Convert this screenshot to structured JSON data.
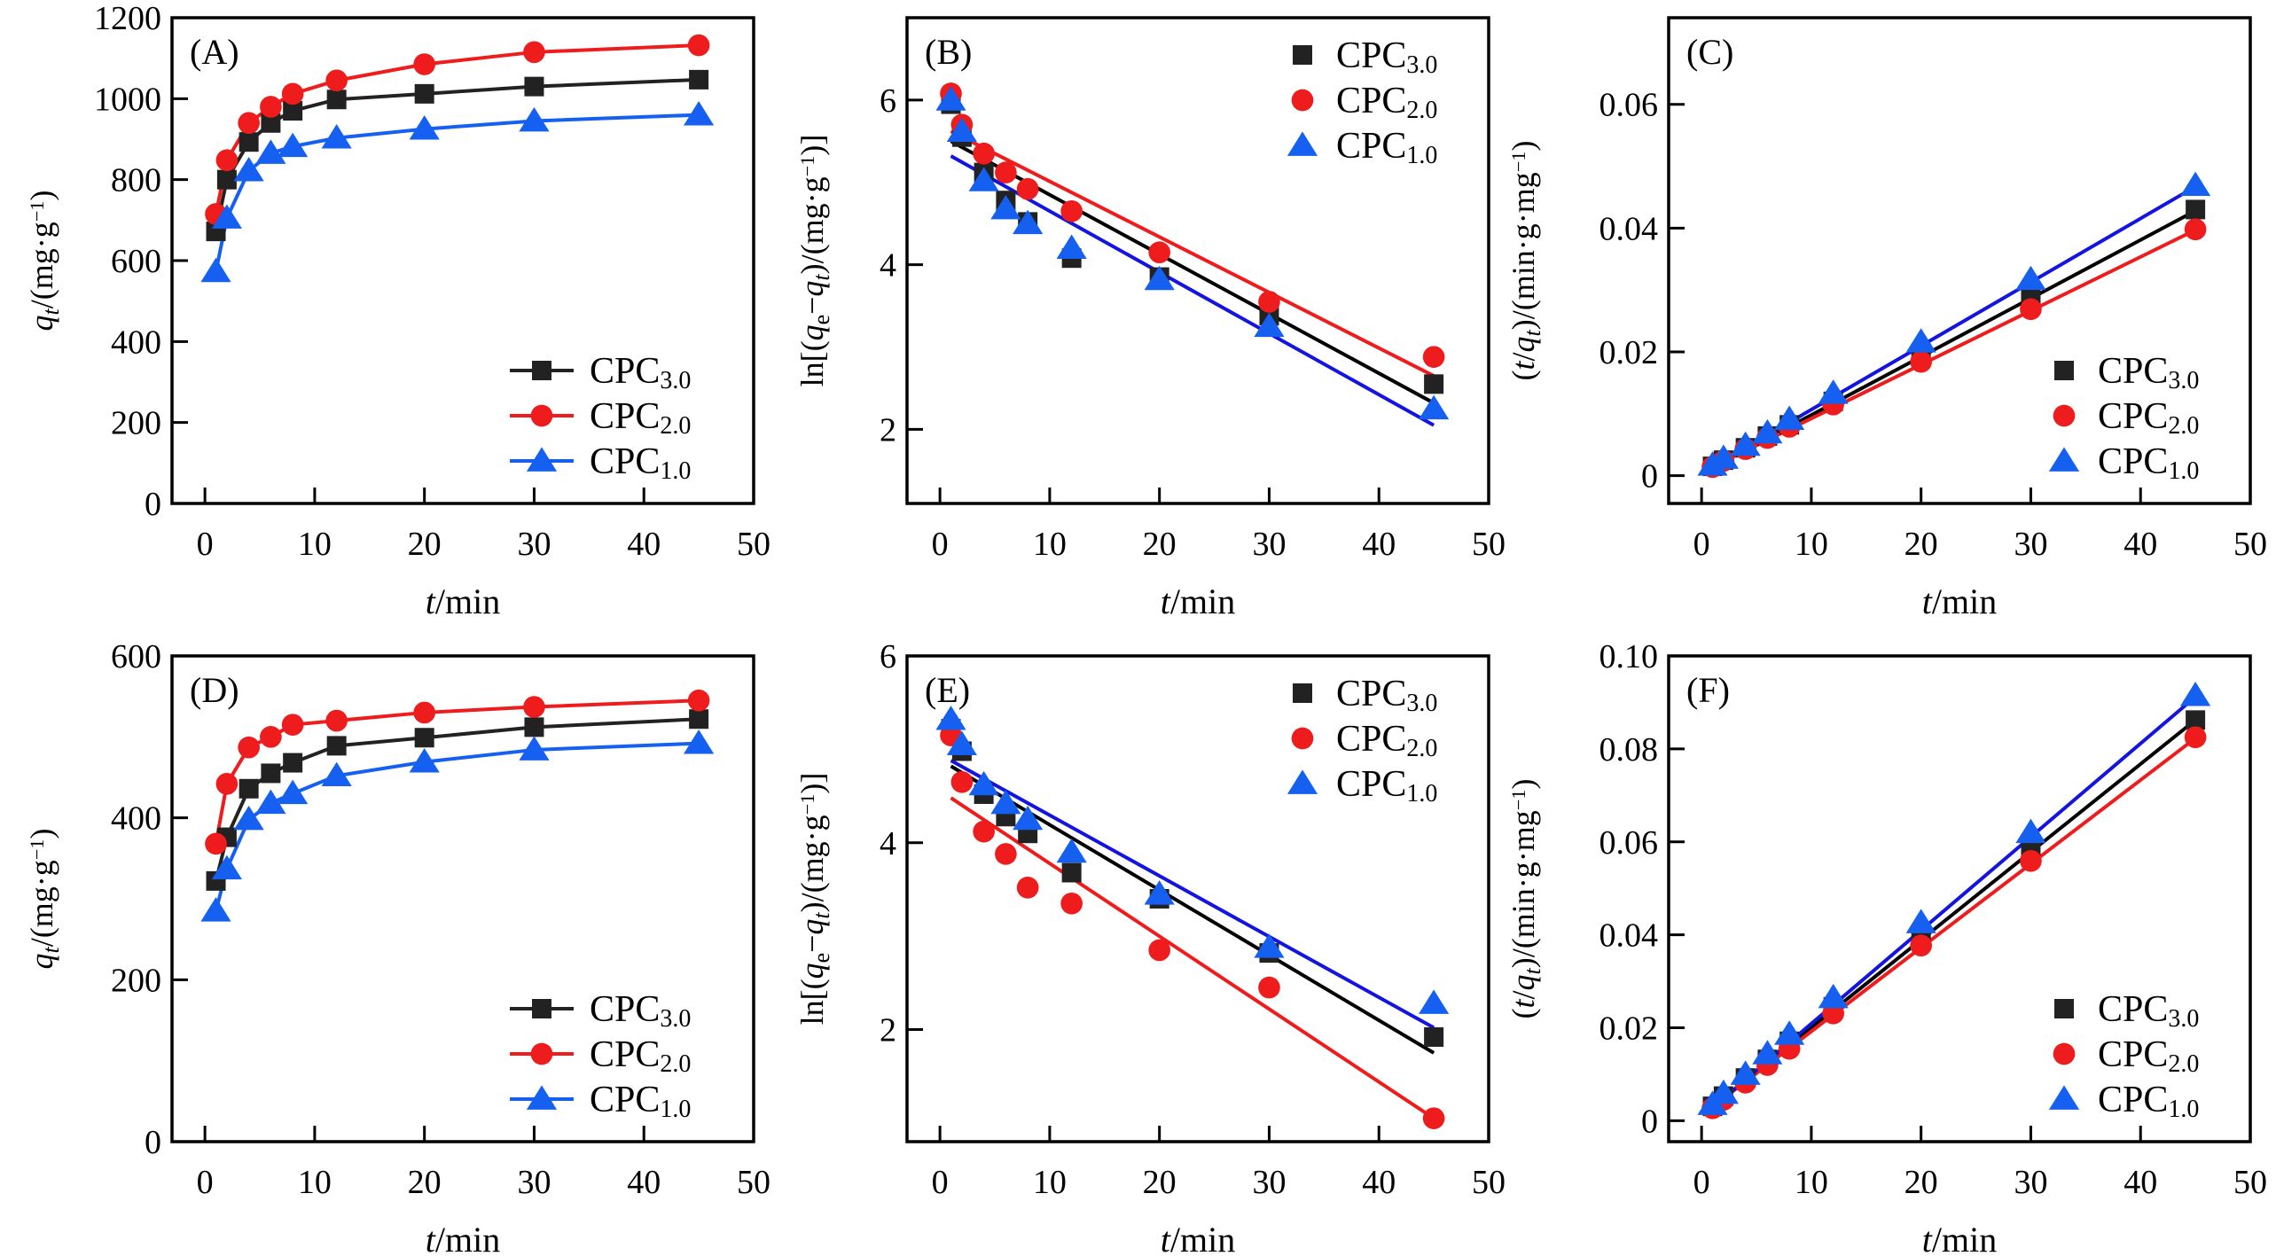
{
  "chart_data": [
    {
      "id": "A",
      "type": "line",
      "panel_label": "(A)",
      "xlabel_italic": "t",
      "xlabel_rest": "/min",
      "ylabel_parts": [
        {
          "t": "q",
          "italic": true
        },
        {
          "t": "t",
          "italic": true,
          "sub": true
        },
        {
          "t": "/(mg·g",
          "italic": false
        },
        {
          "t": "−1",
          "sup": true
        },
        {
          "t": ")",
          "italic": false
        }
      ],
      "xlim": [
        -3,
        50
      ],
      "ylim": [
        0,
        1200
      ],
      "xticks": [
        0,
        10,
        20,
        30,
        40,
        50
      ],
      "yticks": [
        0,
        200,
        400,
        600,
        800,
        1000,
        1200
      ],
      "ytick_labels": [
        "0",
        "200",
        "400",
        "600",
        "800",
        "1000",
        "1200"
      ],
      "legend": "bottom-right",
      "legend_style": "line-marker",
      "x": [
        1,
        2,
        4,
        6,
        8,
        12,
        20,
        30,
        45
      ],
      "series": [
        {
          "name": "CPC",
          "sub": "3.0",
          "color": "#222222",
          "marker": "square",
          "values": [
            672,
            800,
            893,
            940,
            970,
            998,
            1012,
            1030,
            1047
          ]
        },
        {
          "name": "CPC",
          "sub": "2.0",
          "color": "#ee1c1c",
          "marker": "circle",
          "values": [
            715,
            848,
            940,
            980,
            1012,
            1045,
            1085,
            1115,
            1132
          ]
        },
        {
          "name": "CPC",
          "sub": "1.0",
          "color": "#1560f0",
          "marker": "triangle",
          "values": [
            573,
            705,
            822,
            865,
            882,
            903,
            925,
            945,
            960
          ]
        }
      ]
    },
    {
      "id": "B",
      "type": "scatter",
      "panel_label": "(B)",
      "xlabel_italic": "t",
      "xlabel_rest": "/min",
      "ylabel_parts": [
        {
          "t": "ln[(",
          "italic": false
        },
        {
          "t": "q",
          "italic": true
        },
        {
          "t": "e",
          "sub": true
        },
        {
          "t": "−",
          "italic": false
        },
        {
          "t": "q",
          "italic": true
        },
        {
          "t": "t",
          "italic": true,
          "sub": true
        },
        {
          "t": ")/(mg·g",
          "italic": false
        },
        {
          "t": "−1",
          "sup": true
        },
        {
          "t": ")]",
          "italic": false
        }
      ],
      "xlim": [
        -3,
        50
      ],
      "ylim": [
        1.1,
        7.0
      ],
      "xticks": [
        0,
        10,
        20,
        30,
        40,
        50
      ],
      "yticks": [
        2,
        4,
        6
      ],
      "ytick_labels": [
        "2",
        "4",
        "6"
      ],
      "legend": "top-right",
      "legend_style": "marker-only",
      "x": [
        1,
        2,
        4,
        6,
        8,
        12,
        20,
        30,
        45
      ],
      "series": [
        {
          "name": "CPC",
          "sub": "3.0",
          "color": "#222222",
          "fit_color": "#000000",
          "marker": "square",
          "values": [
            5.95,
            5.55,
            5.12,
            4.78,
            4.52,
            4.08,
            3.85,
            3.38,
            2.55
          ],
          "fit": [
            [
              1,
              5.5
            ],
            [
              45,
              2.32
            ]
          ]
        },
        {
          "name": "CPC",
          "sub": "2.0",
          "color": "#ee1c1c",
          "fit_color": "#ee1c1c",
          "marker": "circle",
          "values": [
            6.08,
            5.7,
            5.35,
            5.12,
            4.92,
            4.65,
            4.15,
            3.55,
            2.88
          ],
          "fit": [
            [
              1,
              5.62
            ],
            [
              45,
              2.65
            ]
          ]
        },
        {
          "name": "CPC",
          "sub": "1.0",
          "color": "#1560f0",
          "fit_color": "#1414e0",
          "marker": "triangle",
          "values": [
            6.0,
            5.62,
            5.02,
            4.68,
            4.5,
            4.2,
            3.82,
            3.25,
            2.25
          ],
          "fit": [
            [
              1,
              5.32
            ],
            [
              45,
              2.05
            ]
          ]
        }
      ]
    },
    {
      "id": "C",
      "type": "scatter",
      "panel_label": "(C)",
      "xlabel_italic": "t",
      "xlabel_rest": "/min",
      "ylabel_parts": [
        {
          "t": "(",
          "italic": false
        },
        {
          "t": "t",
          "italic": true
        },
        {
          "t": "/",
          "italic": false
        },
        {
          "t": "q",
          "italic": true
        },
        {
          "t": "t",
          "italic": true,
          "sub": true
        },
        {
          "t": ")/(min·g·mg",
          "italic": false
        },
        {
          "t": "−1",
          "sup": true
        },
        {
          "t": ")",
          "italic": false
        }
      ],
      "xlim": [
        -3,
        50
      ],
      "ylim": [
        -0.0045,
        0.074
      ],
      "xticks": [
        0,
        10,
        20,
        30,
        40,
        50
      ],
      "yticks": [
        0,
        0.02,
        0.04,
        0.06
      ],
      "ytick_labels": [
        "0",
        "0.02",
        "0.04",
        "0.06"
      ],
      "legend": "bottom-right",
      "legend_style": "marker-only",
      "x": [
        1,
        2,
        4,
        6,
        8,
        12,
        20,
        30,
        45
      ],
      "series": [
        {
          "name": "CPC",
          "sub": "3.0",
          "color": "#222222",
          "fit_color": "#000000",
          "marker": "square",
          "values": [
            0.0015,
            0.0025,
            0.0045,
            0.0064,
            0.0082,
            0.012,
            0.0198,
            0.029,
            0.043
          ],
          "fit": [
            [
              1,
              0.0013
            ],
            [
              45,
              0.0428
            ]
          ]
        },
        {
          "name": "CPC",
          "sub": "2.0",
          "color": "#ee1c1c",
          "fit_color": "#ee1c1c",
          "marker": "circle",
          "values": [
            0.0014,
            0.0024,
            0.0043,
            0.0061,
            0.0079,
            0.0115,
            0.0184,
            0.0269,
            0.0398
          ],
          "fit": [
            [
              1,
              0.0014
            ],
            [
              45,
              0.0397
            ]
          ]
        },
        {
          "name": "CPC",
          "sub": "1.0",
          "color": "#1560f0",
          "fit_color": "#1414e0",
          "marker": "triangle",
          "values": [
            0.0017,
            0.0028,
            0.0049,
            0.0069,
            0.0091,
            0.0133,
            0.0216,
            0.0317,
            0.0469
          ],
          "fit": [
            [
              1,
              0.0014
            ],
            [
              45,
              0.0467
            ]
          ]
        }
      ]
    },
    {
      "id": "D",
      "type": "line",
      "panel_label": "(D)",
      "xlabel_italic": "t",
      "xlabel_rest": "/min",
      "ylabel_parts": [
        {
          "t": "q",
          "italic": true
        },
        {
          "t": "t",
          "italic": true,
          "sub": true
        },
        {
          "t": "/(mg·g",
          "italic": false
        },
        {
          "t": "−1",
          "sup": true
        },
        {
          "t": ")",
          "italic": false
        }
      ],
      "xlim": [
        -3,
        50
      ],
      "ylim": [
        0,
        600
      ],
      "xticks": [
        0,
        10,
        20,
        30,
        40,
        50
      ],
      "yticks": [
        0,
        200,
        400,
        600
      ],
      "ytick_labels": [
        "0",
        "200",
        "400",
        "600"
      ],
      "legend": "bottom-right",
      "legend_style": "line-marker",
      "x": [
        1,
        2,
        4,
        6,
        8,
        12,
        20,
        30,
        45
      ],
      "series": [
        {
          "name": "CPC",
          "sub": "3.0",
          "color": "#222222",
          "marker": "square",
          "values": [
            322,
            376,
            436,
            455,
            468,
            489,
            499,
            512,
            522
          ]
        },
        {
          "name": "CPC",
          "sub": "2.0",
          "color": "#ee1c1c",
          "marker": "circle",
          "values": [
            368,
            442,
            487,
            500,
            515,
            520,
            530,
            537,
            545
          ]
        },
        {
          "name": "CPC",
          "sub": "1.0",
          "color": "#1560f0",
          "marker": "triangle",
          "values": [
            285,
            337,
            398,
            418,
            430,
            452,
            469,
            484,
            492
          ]
        }
      ]
    },
    {
      "id": "E",
      "type": "scatter",
      "panel_label": "(E)",
      "xlabel_italic": "t",
      "xlabel_rest": "/min",
      "ylabel_parts": [
        {
          "t": "ln[(",
          "italic": false
        },
        {
          "t": "q",
          "italic": true
        },
        {
          "t": "e",
          "sub": true
        },
        {
          "t": "−",
          "italic": false
        },
        {
          "t": "q",
          "italic": true
        },
        {
          "t": "t",
          "italic": true,
          "sub": true
        },
        {
          "t": ")/(mg·g",
          "italic": false
        },
        {
          "t": "−1",
          "sup": true
        },
        {
          "t": ")]",
          "italic": false
        }
      ],
      "xlim": [
        -3,
        50
      ],
      "ylim": [
        0.8,
        6.0
      ],
      "xticks": [
        0,
        10,
        20,
        30,
        40,
        50
      ],
      "yticks": [
        2,
        4,
        6
      ],
      "ytick_labels": [
        "2",
        "4",
        "6"
      ],
      "legend": "top-right",
      "legend_style": "marker-only",
      "x": [
        1,
        2,
        4,
        6,
        8,
        12,
        20,
        30,
        45
      ],
      "series": [
        {
          "name": "CPC",
          "sub": "3.0",
          "color": "#222222",
          "fit_color": "#000000",
          "marker": "square",
          "values": [
            5.22,
            4.98,
            4.52,
            4.28,
            4.1,
            3.68,
            3.4,
            2.82,
            1.92
          ],
          "fit": [
            [
              1,
              4.82
            ],
            [
              45,
              1.75
            ]
          ]
        },
        {
          "name": "CPC",
          "sub": "2.0",
          "color": "#ee1c1c",
          "fit_color": "#ee1c1c",
          "marker": "circle",
          "values": [
            5.15,
            4.65,
            4.12,
            3.88,
            3.52,
            3.35,
            2.85,
            2.45,
            1.05
          ],
          "fit": [
            [
              1,
              4.48
            ],
            [
              45,
              1.05
            ]
          ]
        },
        {
          "name": "CPC",
          "sub": "1.0",
          "color": "#1560f0",
          "fit_color": "#1414e0",
          "marker": "triangle",
          "values": [
            5.32,
            5.05,
            4.62,
            4.42,
            4.25,
            3.9,
            3.45,
            2.88,
            2.28
          ],
          "fit": [
            [
              1,
              4.88
            ],
            [
              45,
              2.02
            ]
          ]
        }
      ]
    },
    {
      "id": "F",
      "type": "scatter",
      "panel_label": "(F)",
      "xlabel_italic": "t",
      "xlabel_rest": "/min",
      "ylabel_parts": [
        {
          "t": "(",
          "italic": false
        },
        {
          "t": "t",
          "italic": true
        },
        {
          "t": "/",
          "italic": false
        },
        {
          "t": "q",
          "italic": true
        },
        {
          "t": "t",
          "italic": true,
          "sub": true
        },
        {
          "t": ")/(min·g·mg",
          "italic": false
        },
        {
          "t": "−1",
          "sup": true
        },
        {
          "t": ")",
          "italic": false
        }
      ],
      "xlim": [
        -3,
        50
      ],
      "ylim": [
        -0.0045,
        0.1
      ],
      "xticks": [
        0,
        10,
        20,
        30,
        40,
        50
      ],
      "yticks": [
        0,
        0.02,
        0.04,
        0.06,
        0.08,
        0.1
      ],
      "ytick_labels": [
        "0",
        "0.02",
        "0.04",
        "0.06",
        "0.08",
        "0.10"
      ],
      "legend": "bottom-right",
      "legend_style": "marker-only",
      "x": [
        1,
        2,
        4,
        6,
        8,
        12,
        20,
        30,
        45
      ],
      "series": [
        {
          "name": "CPC",
          "sub": "3.0",
          "color": "#222222",
          "fit_color": "#000000",
          "marker": "square",
          "values": [
            0.0031,
            0.0053,
            0.0092,
            0.0132,
            0.0171,
            0.0245,
            0.04,
            0.0586,
            0.0862
          ],
          "fit": [
            [
              1,
              0.003
            ],
            [
              45,
              0.0862
            ]
          ]
        },
        {
          "name": "CPC",
          "sub": "2.0",
          "color": "#ee1c1c",
          "fit_color": "#ee1c1c",
          "marker": "circle",
          "values": [
            0.0027,
            0.0045,
            0.0082,
            0.012,
            0.0155,
            0.0231,
            0.0377,
            0.0559,
            0.0825
          ],
          "fit": [
            [
              1,
              0.003
            ],
            [
              45,
              0.0823
            ]
          ]
        },
        {
          "name": "CPC",
          "sub": "1.0",
          "color": "#1560f0",
          "fit_color": "#1414e0",
          "marker": "triangle",
          "values": [
            0.0035,
            0.0059,
            0.01,
            0.0144,
            0.0186,
            0.0265,
            0.0426,
            0.062,
            0.0915
          ],
          "fit": [
            [
              1,
              0.0028
            ],
            [
              45,
              0.0912
            ]
          ]
        }
      ]
    }
  ]
}
